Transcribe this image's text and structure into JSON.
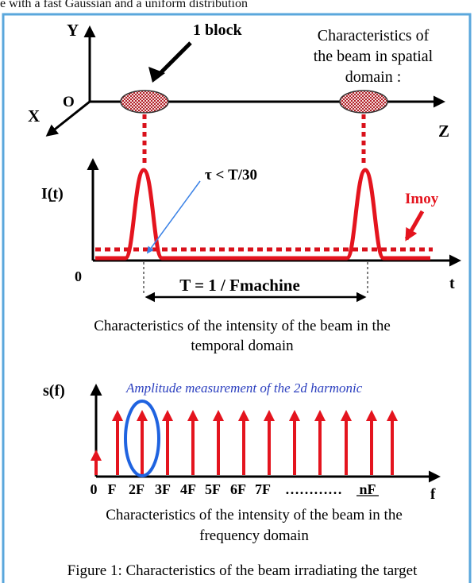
{
  "header_fragment": "e with a fast Gaussian and a uniform distribution",
  "spatial": {
    "axis_y": "Y",
    "axis_x": "X",
    "axis_z": "Z",
    "origin": "O",
    "block_label": "1 block",
    "title_line1": "Characteristics of",
    "title_line2": "the beam in spatial",
    "title_line3": "domain :"
  },
  "temporal": {
    "ylabel": "I(t)",
    "tau_label": "τ < T/30",
    "imoy_label": "Imoy",
    "zero_label": "0",
    "t_label": "t",
    "period_label": "T = 1 / Fmachine",
    "caption_line1": "Characteristics of the intensity of the beam in the",
    "caption_line2": "temporal domain"
  },
  "frequency": {
    "ylabel": "s(f)",
    "annotation": "Amplitude measurement of the 2d harmonic",
    "tick_labels": [
      "0",
      "F",
      "2F",
      "3F",
      "4F",
      "5F",
      "6F",
      "7F",
      "…………",
      "nF"
    ],
    "f_label": "f",
    "caption_line1": "Characteristics of the intensity of the beam in the",
    "caption_line2": "frequency domain"
  },
  "figure_caption": "Figure 1: Characteristics of the beam irradiating the target",
  "colors": {
    "border": "#5aa7dc",
    "beam_red": "#e4141e",
    "dotted_red": "#d9111b",
    "blue_line": "#3b82e6",
    "highlight_blue": "#1f63e0",
    "annotation_blue": "#2b3fbf",
    "axis": "#000000"
  }
}
